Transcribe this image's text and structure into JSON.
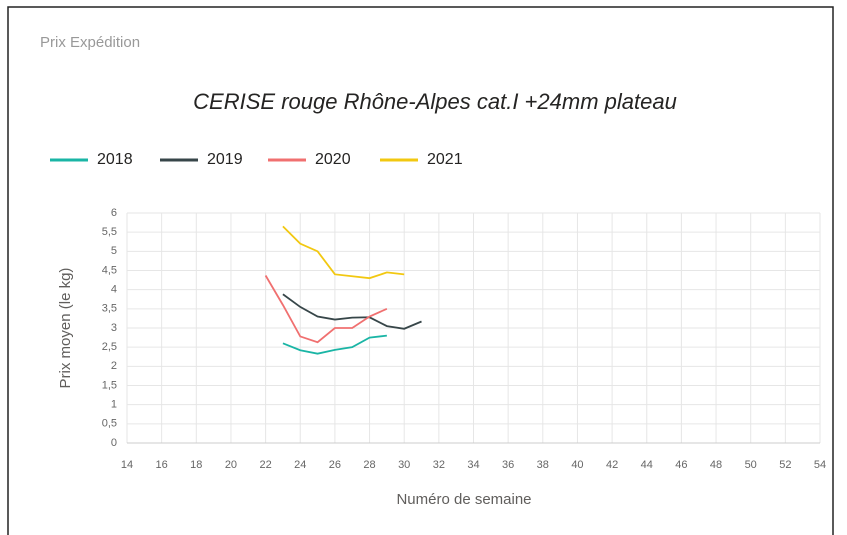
{
  "header": "Prix Expédition",
  "chart_data": {
    "type": "line",
    "title": "CERISE rouge Rhône-Alpes cat.I +24mm plateau",
    "x_label": "Numéro de semaine",
    "y_label": "Prix moyen  (le kg)",
    "xlim": [
      14,
      54
    ],
    "xticks": [
      14,
      16,
      18,
      20,
      22,
      24,
      26,
      28,
      30,
      32,
      34,
      36,
      38,
      40,
      42,
      44,
      46,
      48,
      50,
      52,
      54
    ],
    "ylim": [
      0,
      6
    ],
    "yticks": [
      0,
      {
        "value": 0.5,
        "label": "0,5"
      },
      1,
      {
        "value": 1.5,
        "label": "1,5"
      },
      2,
      {
        "value": 2.5,
        "label": "2,5"
      },
      3,
      {
        "value": 3.5,
        "label": "3,5"
      },
      4,
      {
        "value": 4.5,
        "label": "4,5"
      },
      5,
      {
        "value": 5.5,
        "label": "5,5"
      },
      6
    ],
    "grid": true,
    "legend": "top-left",
    "series": [
      {
        "name": "2018",
        "color": "#1ab5a5",
        "x": [
          23,
          24,
          25,
          26,
          27,
          28,
          29
        ],
        "values": [
          2.6,
          2.42,
          2.33,
          2.43,
          2.5,
          2.75,
          2.8
        ]
      },
      {
        "name": "2019",
        "color": "#374649",
        "x": [
          23,
          24,
          25,
          26,
          27,
          28,
          29,
          30,
          31
        ],
        "values": [
          3.88,
          3.55,
          3.3,
          3.22,
          3.27,
          3.28,
          3.05,
          2.98,
          3.17
        ]
      },
      {
        "name": "2020",
        "color": "#f07070",
        "x": [
          22,
          23,
          24,
          25,
          26,
          27,
          28,
          29
        ],
        "values": [
          4.37,
          3.6,
          2.78,
          2.63,
          3.0,
          3.0,
          3.3,
          3.5
        ]
      },
      {
        "name": "2021",
        "color": "#f2c811",
        "x": [
          23,
          24,
          25,
          26,
          27,
          28,
          29,
          30
        ],
        "values": [
          5.65,
          5.2,
          5.0,
          4.4,
          4.35,
          4.3,
          4.45,
          4.4
        ]
      }
    ]
  }
}
